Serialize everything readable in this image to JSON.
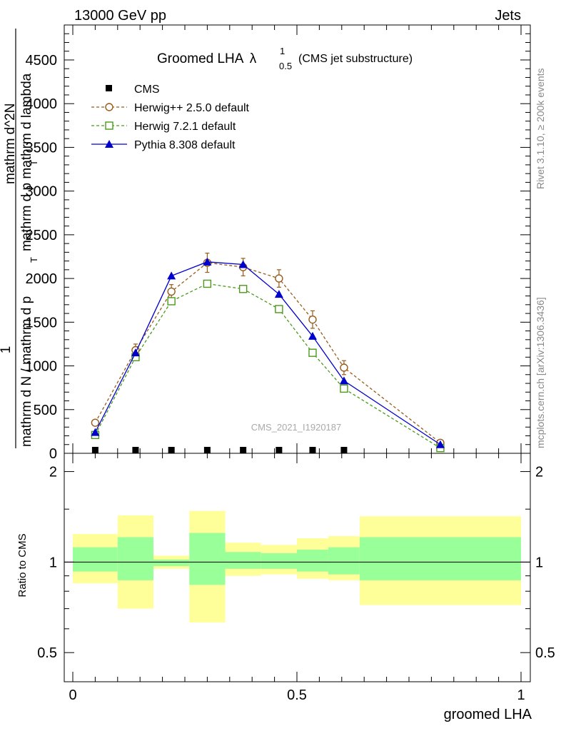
{
  "header": {
    "left": "13000 GeV pp",
    "right": "Jets"
  },
  "side_labels": {
    "rivet": "Rivet 3.1.10, ≥ 200k events",
    "mcplots": "mcplots.cern.ch [arXiv:1306.3436]"
  },
  "watermark": "CMS_2021_I1920187",
  "chart_data": [
    {
      "type": "line",
      "title": "Groomed LHA",
      "title_symbol": "λ",
      "title_sup": "1",
      "title_sub": "0.5",
      "title_suffix": "(CMS jet substructure)",
      "ylabel_numerator": "1",
      "ylabel_denominator": "mathrm d N / mathrm d p_T mathrm d p_T mathrm d lambda",
      "ylabel_overlay": "mathrm d^2N",
      "ylabel_bottom_part": "mathrm d N / mathrm d p",
      "ylabel_top_part": "mathrm d p mathrm d lambda",
      "ylabel_sub": "T",
      "xlim": [
        0,
        1
      ],
      "ylim": [
        0,
        4900
      ],
      "yticks": [
        0,
        500,
        1000,
        1500,
        2000,
        2500,
        3000,
        3500,
        4000,
        4500
      ],
      "ytick_labels": [
        "0",
        "500",
        "1000",
        "1500",
        "2000",
        "2500",
        "3000",
        "3500",
        "4000",
        "4500"
      ],
      "legend": [
        "CMS",
        "Herwig++ 2.5.0 default",
        "Herwig 7.2.1 default",
        "Pythia 8.308 default"
      ],
      "series": [
        {
          "name": "CMS",
          "color": "#000000",
          "marker": "square",
          "x": [
            0.05,
            0.14,
            0.22,
            0.3,
            0.38,
            0.46,
            0.535,
            0.605
          ],
          "values": [
            5,
            5,
            5,
            5,
            5,
            5,
            5,
            5
          ]
        },
        {
          "name": "Herwig++ 2.5.0 default",
          "color": "#9a5a1a",
          "marker": "open-circle",
          "x": [
            0.05,
            0.14,
            0.22,
            0.3,
            0.38,
            0.46,
            0.535,
            0.605,
            0.82
          ],
          "values": [
            350,
            1180,
            1850,
            2180,
            2130,
            2000,
            1530,
            980,
            120
          ],
          "errors": [
            30,
            70,
            80,
            110,
            100,
            100,
            100,
            80,
            20
          ]
        },
        {
          "name": "Herwig 7.2.1 default",
          "color": "#4a9a1a",
          "marker": "open-square",
          "x": [
            0.05,
            0.14,
            0.22,
            0.3,
            0.38,
            0.46,
            0.535,
            0.605,
            0.82
          ],
          "values": [
            210,
            1100,
            1740,
            1940,
            1880,
            1650,
            1150,
            740,
            60
          ]
        },
        {
          "name": "Pythia 8.308 default",
          "color": "#0000cc",
          "marker": "filled-triangle",
          "x": [
            0.05,
            0.14,
            0.22,
            0.3,
            0.38,
            0.46,
            0.535,
            0.605,
            0.82
          ],
          "values": [
            240,
            1150,
            2030,
            2190,
            2160,
            1820,
            1340,
            830,
            100
          ]
        }
      ]
    },
    {
      "type": "area",
      "ylabel": "Ratio to CMS",
      "xlabel": "groomed LHA",
      "xlim": [
        0,
        1
      ],
      "ylim": [
        0.4,
        2.3
      ],
      "yscale": "log",
      "yticks": [
        0.5,
        1,
        2
      ],
      "ytick_labels": [
        "0.5",
        "1",
        "2"
      ],
      "xticks": [
        0,
        0.5,
        1
      ],
      "xtick_labels": [
        "0",
        "0.5",
        "1"
      ],
      "bin_edges": [
        0,
        0.1,
        0.18,
        0.26,
        0.34,
        0.42,
        0.5,
        0.57,
        0.64,
        1.0
      ],
      "band_2sigma_low": [
        0.85,
        0.7,
        0.95,
        0.63,
        0.9,
        0.91,
        0.88,
        0.87,
        0.72
      ],
      "band_2sigma_high": [
        1.24,
        1.43,
        1.05,
        1.48,
        1.16,
        1.14,
        1.2,
        1.22,
        1.42
      ],
      "band_1sigma_low": [
        0.93,
        0.87,
        0.97,
        0.84,
        0.95,
        0.95,
        0.93,
        0.91,
        0.87
      ],
      "band_1sigma_high": [
        1.12,
        1.21,
        1.02,
        1.25,
        1.08,
        1.07,
        1.1,
        1.12,
        1.21
      ],
      "reference_line": 1,
      "colors": {
        "band_outer": "#ffff99",
        "band_inner": "#99ff99",
        "reference": "#000000"
      }
    }
  ]
}
